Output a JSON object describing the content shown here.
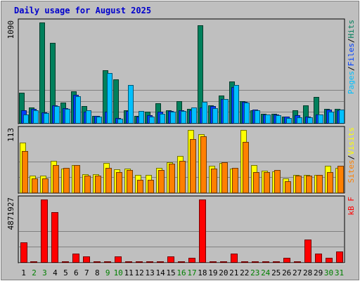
{
  "title": "Daily usage for August 2025",
  "colors": {
    "background": "#bfbfbf",
    "title": "#0000cc",
    "hits": "#00805c",
    "files": "#0040ff",
    "pages": "#00c0ff",
    "visits": "#ffff00",
    "sites": "#ff8000",
    "kbytes": "#ff0000",
    "weekend_day": "#008000",
    "weekday": "#000000"
  },
  "chart_data": {
    "type": "bar",
    "title": "Daily usage for August 2025",
    "categories": [
      "1",
      "2",
      "3",
      "4",
      "5",
      "6",
      "7",
      "8",
      "9",
      "10",
      "11",
      "12",
      "13",
      "14",
      "15",
      "16",
      "17",
      "18",
      "19",
      "20",
      "21",
      "22",
      "23",
      "24",
      "25",
      "26",
      "27",
      "28",
      "29",
      "30",
      "31"
    ],
    "weekend_days": [
      2,
      3,
      9,
      10,
      16,
      17,
      23,
      24,
      30,
      31
    ],
    "panels": [
      {
        "id": "hits",
        "max_label": "1090",
        "ymax": 1090,
        "legend": [
          {
            "text": "Pages",
            "color": "#00c0ff"
          },
          {
            "text": "/",
            "color": "#000000"
          },
          {
            "text": "Files",
            "color": "#0040ff"
          },
          {
            "text": "/",
            "color": "#000000"
          },
          {
            "text": "Hits",
            "color": "#00805c"
          }
        ],
        "series": [
          {
            "name": "Hits",
            "color": "#00805c",
            "values": [
              330,
              170,
              1090,
              870,
              220,
              340,
              180,
              80,
              570,
              470,
              140,
              80,
              120,
              210,
              140,
              240,
              150,
              1060,
              190,
              300,
              450,
              240,
              140,
              100,
              100,
              70,
              140,
              190,
              280,
              150,
              150
            ]
          },
          {
            "name": "Files",
            "color": "#0040ff",
            "values": [
              140,
              150,
              115,
              190,
              160,
              305,
              125,
              75,
              120,
              55,
              130,
              70,
              85,
              120,
              130,
              135,
              135,
              165,
              180,
              260,
              390,
              230,
              145,
              95,
              90,
              70,
              85,
              70,
              95,
              145,
              140
            ]
          },
          {
            "name": "Pages",
            "color": "#00c0ff",
            "values": [
              95,
              140,
              110,
              185,
              150,
              290,
              135,
              65,
              540,
              45,
              410,
              130,
              70,
              100,
              125,
              130,
              170,
              230,
              160,
              260,
              410,
              220,
              135,
              90,
              85,
              55,
              60,
              60,
              90,
              120,
              145
            ]
          }
        ]
      },
      {
        "id": "visits",
        "max_label": "113",
        "ymax": 113,
        "legend": [
          {
            "text": "Sites",
            "color": "#ff8000"
          },
          {
            "text": "/",
            "color": "#000000"
          },
          {
            "text": "Visits",
            "color": "#ffff00"
          }
        ],
        "series": [
          {
            "name": "Visits",
            "color": "#ffff00",
            "values": [
              90,
              30,
              30,
              57,
              43,
              50,
              33,
              33,
              53,
              42,
              43,
              32,
              32,
              45,
              55,
              66,
              113,
              106,
              48,
              53,
              43,
              113,
              50,
              39,
              38,
              25,
              32,
              32,
              32,
              48,
              45
            ]
          },
          {
            "name": "Sites",
            "color": "#ff8000",
            "values": [
              75,
              25,
              25,
              50,
              45,
              50,
              30,
              30,
              45,
              37,
              40,
              23,
              23,
              40,
              52,
              57,
              97,
              101,
              43,
              54,
              45,
              92,
              37,
              37,
              40,
              20,
              30,
              30,
              32,
              37,
              48
            ]
          }
        ]
      },
      {
        "id": "kbytes",
        "max_label": "4871927",
        "ymax": 4871927,
        "legend": [
          {
            "text": "kB F",
            "color": "#ff0000"
          }
        ],
        "series": [
          {
            "name": "kB F",
            "color": "#ff0000",
            "values": [
              1560000,
              0,
              4871927,
              3870000,
              0,
              680000,
              440000,
              60000,
              60000,
              440000,
              60000,
              60000,
              60000,
              60000,
              440000,
              60000,
              320000,
              4871927,
              60000,
              60000,
              680000,
              60000,
              60000,
              60000,
              60000,
              320000,
              60000,
              1740000,
              680000,
              320000,
              830000
            ]
          }
        ]
      }
    ]
  }
}
